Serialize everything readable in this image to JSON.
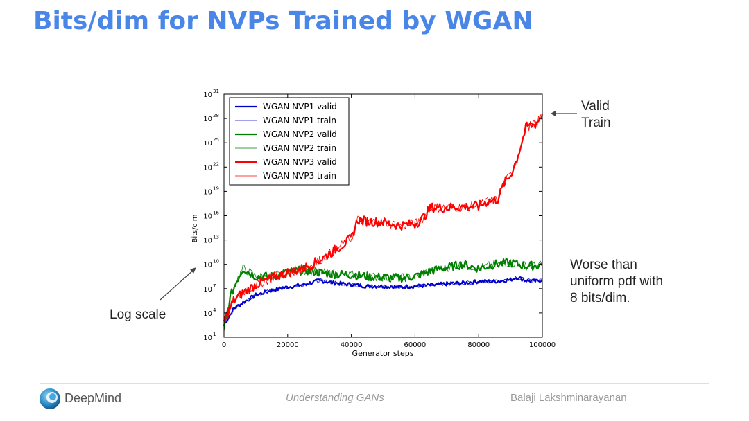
{
  "slide": {
    "title": "Bits/dim for NVPs Trained by WGAN",
    "annotation_right_top": [
      "Valid",
      "Train"
    ],
    "annotation_right_bottom": [
      "Worse than",
      "uniform pdf with",
      "8 bits/dim."
    ],
    "annotation_left": "Log scale"
  },
  "footer": {
    "logo_text": "DeepMind",
    "center": "Understanding GANs",
    "right": "Balaji Lakshminarayanan"
  },
  "colors": {
    "title": "#4a86e8",
    "nvp1": "#0000cc",
    "nvp2": "#008000",
    "nvp3": "#ff0000"
  },
  "chart_data": {
    "type": "line",
    "xlabel": "Generator steps",
    "ylabel": "Bits/dim",
    "xlim": [
      0,
      100000
    ],
    "ylim_log10": [
      1,
      31
    ],
    "yscale": "log",
    "x_ticks": [
      "0",
      "20000",
      "40000",
      "60000",
      "80000",
      "100000"
    ],
    "y_tick_exponents": [
      "1",
      "4",
      "7",
      "10",
      "13",
      "16",
      "19",
      "22",
      "25",
      "28",
      "31"
    ],
    "grid": false,
    "legend_position": "top-left",
    "series": [
      {
        "name": "WGAN NVP1 valid",
        "color": "#0000cc",
        "lw": 2.2,
        "x": [
          0,
          3000,
          6000,
          10000,
          15000,
          20000,
          25000,
          30000,
          35000,
          40000,
          45000,
          50000,
          55000,
          60000,
          65000,
          70000,
          75000,
          80000,
          85000,
          90000,
          92000,
          95000,
          98000,
          100000
        ],
        "y": [
          2.5,
          4.5,
          5.3,
          6.2,
          6.8,
          7.2,
          7.5,
          8.0,
          7.7,
          7.5,
          7.3,
          7.3,
          7.2,
          7.3,
          7.4,
          7.6,
          7.7,
          7.9,
          7.9,
          8.1,
          8.4,
          8.0,
          7.9,
          8.1
        ]
      },
      {
        "name": "WGAN NVP1 train",
        "color": "#0000cc",
        "lw": 0.8,
        "x": [
          0,
          3000,
          6000,
          10000,
          15000,
          20000,
          25000,
          30000,
          35000,
          40000,
          45000,
          50000,
          55000,
          60000,
          65000,
          70000,
          75000,
          80000,
          85000,
          90000,
          92000,
          95000,
          98000,
          100000
        ],
        "y": [
          2.5,
          4.5,
          5.3,
          6.2,
          6.8,
          7.2,
          7.5,
          8.0,
          7.7,
          7.5,
          7.3,
          7.3,
          7.2,
          7.3,
          7.4,
          7.6,
          7.7,
          7.9,
          7.9,
          8.1,
          8.4,
          8.0,
          7.9,
          8.1
        ]
      },
      {
        "name": "WGAN NVP2 valid",
        "color": "#008000",
        "lw": 2.2,
        "x": [
          0,
          2000,
          4000,
          6000,
          8000,
          10000,
          15000,
          20000,
          25000,
          30000,
          35000,
          40000,
          45000,
          50000,
          55000,
          60000,
          65000,
          70000,
          75000,
          80000,
          85000,
          90000,
          95000,
          100000
        ],
        "y": [
          2.0,
          6.0,
          8.0,
          9.5,
          9.0,
          8.5,
          8.5,
          9.0,
          9.3,
          9.0,
          8.8,
          8.7,
          8.5,
          8.4,
          8.3,
          8.5,
          9.2,
          9.6,
          10.0,
          9.5,
          10.0,
          10.2,
          9.8,
          9.9
        ]
      },
      {
        "name": "WGAN NVP2 train",
        "color": "#008000",
        "lw": 0.8,
        "x": [
          0,
          2000,
          4000,
          6000,
          8000,
          10000,
          15000,
          20000,
          25000,
          30000,
          35000,
          40000,
          45000,
          50000,
          55000,
          60000,
          65000,
          70000,
          75000,
          80000,
          85000,
          90000,
          95000,
          100000
        ],
        "y": [
          2.0,
          6.0,
          8.0,
          9.5,
          9.0,
          8.5,
          8.5,
          9.0,
          9.3,
          9.0,
          8.8,
          8.7,
          8.5,
          8.4,
          8.3,
          8.5,
          9.2,
          9.6,
          10.0,
          9.5,
          10.0,
          10.2,
          9.8,
          9.9
        ]
      },
      {
        "name": "WGAN NVP3 valid",
        "color": "#ff0000",
        "lw": 2.2,
        "x": [
          0,
          3000,
          6000,
          10000,
          15000,
          20000,
          25000,
          30000,
          35000,
          40000,
          42000,
          45000,
          50000,
          55000,
          60000,
          62000,
          65000,
          70000,
          75000,
          80000,
          83000,
          86000,
          88000,
          90000,
          92000,
          95000,
          98000,
          100000
        ],
        "y": [
          3.0,
          5.5,
          6.5,
          7.5,
          8.3,
          9.0,
          9.5,
          10.5,
          11.8,
          13.2,
          15.5,
          15.3,
          15.2,
          14.8,
          15.0,
          15.5,
          17.0,
          17.0,
          17.1,
          17.2,
          17.8,
          18.0,
          20.0,
          21.0,
          23.0,
          27.0,
          27.3,
          28.5
        ]
      },
      {
        "name": "WGAN NVP3 train",
        "color": "#ff0000",
        "lw": 0.8,
        "x": [
          0,
          3000,
          6000,
          10000,
          15000,
          20000,
          25000,
          30000,
          35000,
          40000,
          42000,
          45000,
          50000,
          55000,
          60000,
          62000,
          65000,
          70000,
          75000,
          80000,
          83000,
          86000,
          88000,
          90000,
          92000,
          95000,
          98000,
          100000
        ],
        "y": [
          3.0,
          5.5,
          6.5,
          7.5,
          8.3,
          9.0,
          9.5,
          10.5,
          11.8,
          13.2,
          15.5,
          15.3,
          15.2,
          14.8,
          15.0,
          15.5,
          17.0,
          17.0,
          17.1,
          17.2,
          17.8,
          18.0,
          20.0,
          21.0,
          23.0,
          27.0,
          27.3,
          28.5
        ]
      }
    ]
  }
}
